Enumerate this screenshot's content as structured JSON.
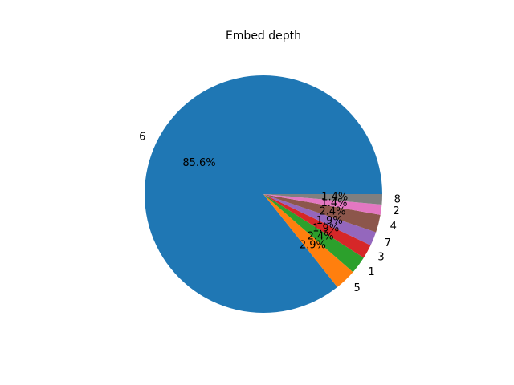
{
  "chart_data": {
    "type": "pie",
    "title": "Embed depth",
    "categories": [
      "6",
      "5",
      "1",
      "3",
      "7",
      "4",
      "2",
      "8"
    ],
    "values": [
      85.6,
      2.9,
      2.4,
      1.9,
      1.9,
      2.4,
      1.4,
      1.4
    ],
    "percent_labels": [
      "85.6%",
      "2.9%",
      "2.4%",
      "1.9%",
      "1.9%",
      "2.4%",
      "1.4%",
      "1.4%"
    ],
    "colors": [
      "#1f77b4",
      "#ff7f0e",
      "#2ca02c",
      "#d62728",
      "#9467bd",
      "#8c564b",
      "#e377c2",
      "#7f7f7f"
    ],
    "start_angle_deg": 0,
    "direction": "counterclockwise",
    "legend": "none",
    "grid": false
  }
}
